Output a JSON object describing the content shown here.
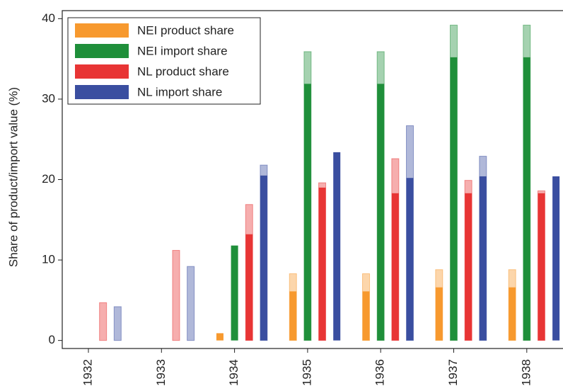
{
  "chart_data": {
    "type": "bar",
    "y_label": "Share of product/import value (%)",
    "categories": [
      "1932",
      "1933",
      "1934",
      "1935",
      "1936",
      "1937",
      "1938"
    ],
    "ylim": [
      -1,
      41
    ],
    "yticks": [
      0,
      10,
      20,
      30,
      40
    ],
    "legend": "upper left",
    "series": [
      {
        "name": "NEI product share",
        "color": "#f7992e",
        "values": [
          null,
          null,
          0.9,
          6.1,
          6.1,
          6.6,
          6.6
        ],
        "upper_values": [
          null,
          null,
          null,
          8.3,
          8.3,
          8.8,
          8.8
        ]
      },
      {
        "name": "NEI import share",
        "color": "#1f8f3a",
        "values": [
          null,
          null,
          11.8,
          31.9,
          31.9,
          35.2,
          35.2
        ],
        "upper_values": [
          null,
          null,
          null,
          35.9,
          35.9,
          39.2,
          39.2
        ]
      },
      {
        "name": "NL product share",
        "color": "#e83535",
        "values": [
          null,
          null,
          13.2,
          19.0,
          18.3,
          18.3,
          18.3
        ],
        "upper_values": [
          4.7,
          11.2,
          16.9,
          19.6,
          22.6,
          19.9,
          18.6
        ]
      },
      {
        "name": "NL import share",
        "color": "#3a4ea0",
        "values": [
          null,
          null,
          20.5,
          23.4,
          20.2,
          20.4,
          20.4
        ],
        "upper_values": [
          4.2,
          9.2,
          21.8,
          null,
          26.7,
          22.9,
          null
        ]
      }
    ]
  }
}
